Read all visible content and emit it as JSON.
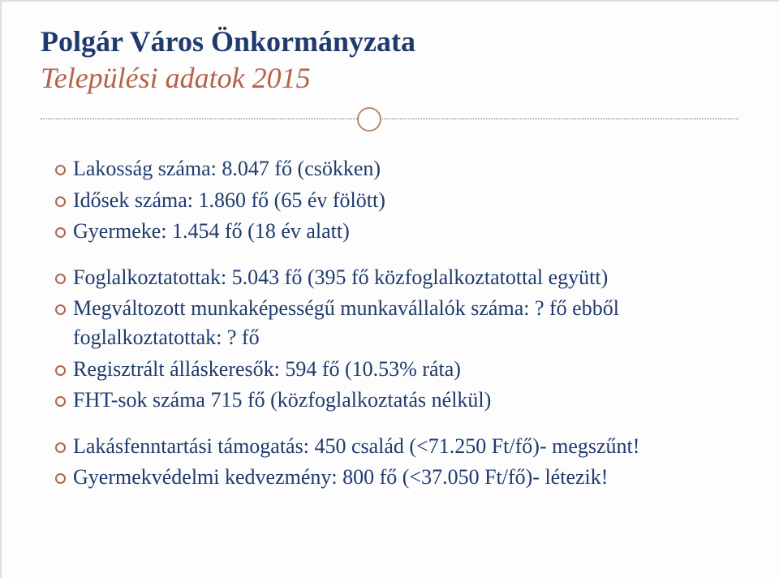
{
  "header": {
    "title": "Polgár Város Önkormányzata",
    "subtitle": "Települési adatok 2015"
  },
  "groups": [
    {
      "items": [
        "Lakosság száma: 8.047 fő (csökken)",
        "Idősek száma: 1.860 fő (65 év fölött)",
        "Gyermeke: 1.454 fő (18 év alatt)"
      ]
    },
    {
      "items": [
        "Foglalkoztatottak: 5.043 fő (395 fő közfoglalkoztatottal együtt)",
        "Megváltozott munkaképességű munkavállalók száma:    ? fő ebből foglalkoztatottak:   ? fő",
        "Regisztrált álláskeresők: 594 fő (10.53% ráta)",
        "FHT-sok száma 715 fő (közfoglalkoztatás nélkül)"
      ]
    },
    {
      "items": [
        "Lakásfenntartási támogatás: 450 család (<71.250 Ft/fő)- megszűnt!",
        "Gyermekvédelmi kedvezmény: 800 fő (<37.050 Ft/fő)- létezik!"
      ]
    }
  ],
  "style": {
    "title_color": "#1f3a6e",
    "accent_color": "#b4634a",
    "bullet_border": "#b4634a",
    "text_color": "#1f3a6e",
    "divider_color": "#8a5a44",
    "circle_border": "#b88a6a",
    "background": "#fdfdfd",
    "title_fontsize": 36,
    "body_fontsize": 26
  }
}
